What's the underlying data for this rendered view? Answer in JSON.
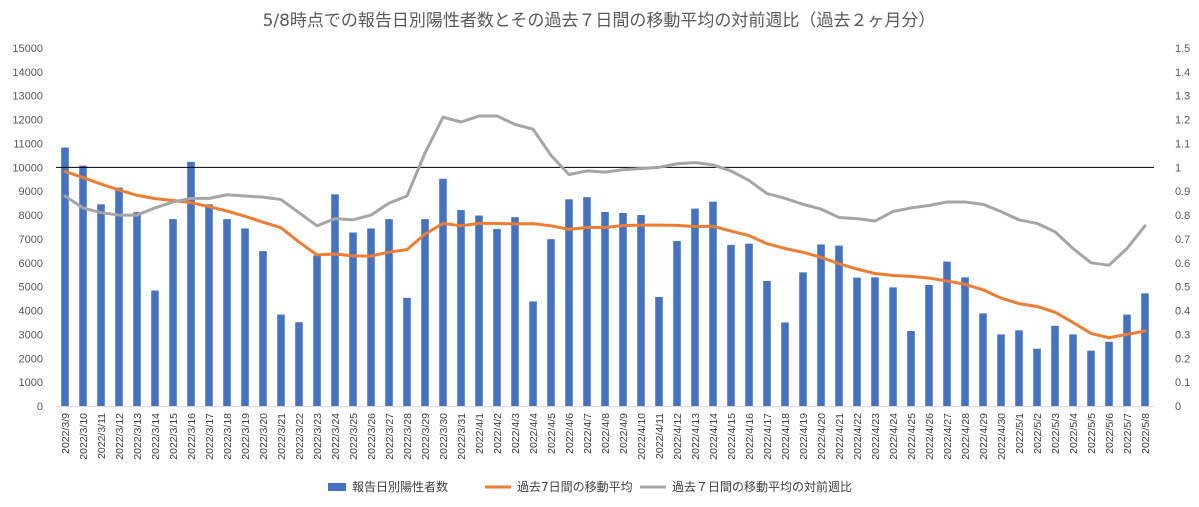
{
  "chart_data": {
    "type": "bar",
    "title": "5/8時点での報告日別陽性者数とその過去７日間の移動平均の対前週比（過去２ヶ月分）",
    "categories": [
      "2022/3/9",
      "2022/3/10",
      "2022/3/11",
      "2022/3/12",
      "2022/3/13",
      "2022/3/14",
      "2022/3/15",
      "2022/3/16",
      "2022/3/17",
      "2022/3/18",
      "2022/3/19",
      "2022/3/20",
      "2022/3/21",
      "2022/3/22",
      "2022/3/23",
      "2022/3/24",
      "2022/3/25",
      "2022/3/26",
      "2022/3/27",
      "2022/3/28",
      "2022/3/29",
      "2022/3/30",
      "2022/3/31",
      "2022/4/1",
      "2022/4/2",
      "2022/4/3",
      "2022/4/4",
      "2022/4/5",
      "2022/4/6",
      "2022/4/7",
      "2022/4/8",
      "2022/4/9",
      "2022/4/10",
      "2022/4/11",
      "2022/4/12",
      "2022/4/13",
      "2022/4/14",
      "2022/4/15",
      "2022/4/16",
      "2022/4/17",
      "2022/4/18",
      "2022/4/19",
      "2022/4/20",
      "2022/4/21",
      "2022/4/22",
      "2022/4/23",
      "2022/4/24",
      "2022/4/25",
      "2022/4/26",
      "2022/4/27",
      "2022/4/28",
      "2022/4/29",
      "2022/4/30",
      "2022/5/1",
      "2022/5/2",
      "2022/5/3",
      "2022/5/4",
      "2022/5/5",
      "2022/5/6",
      "2022/5/7",
      "2022/5/8"
    ],
    "series": [
      {
        "name": "報告日別陽性者数",
        "type": "bar",
        "axis": "left",
        "color": "#4472C4",
        "values": [
          10830,
          10070,
          8450,
          9150,
          8120,
          4840,
          7830,
          10230,
          8450,
          7830,
          7440,
          6490,
          3830,
          3510,
          6310,
          8870,
          7270,
          7440,
          7830,
          4530,
          7830,
          9520,
          8210,
          7980,
          7420,
          7910,
          4380,
          6990,
          8660,
          8750,
          8130,
          8090,
          8000,
          4570,
          6910,
          8270,
          8560,
          6750,
          6800,
          5240,
          3500,
          5600,
          6770,
          6720,
          5380,
          5390,
          4970,
          3140,
          5070,
          6050,
          5390,
          3880,
          3000,
          3170,
          2400,
          3360,
          3000,
          2320,
          2690,
          3830,
          4720
        ]
      },
      {
        "name": "過去7日間の移動平均",
        "type": "line",
        "axis": "left",
        "color": "#ED7D31",
        "values": [
          9830,
          9570,
          9300,
          9050,
          8830,
          8690,
          8610,
          8520,
          8350,
          8170,
          7950,
          7700,
          7470,
          6870,
          6330,
          6370,
          6290,
          6280,
          6450,
          6550,
          7200,
          7650,
          7550,
          7650,
          7650,
          7630,
          7640,
          7550,
          7400,
          7480,
          7480,
          7560,
          7580,
          7580,
          7570,
          7520,
          7530,
          7330,
          7140,
          6800,
          6600,
          6440,
          6230,
          5960,
          5740,
          5550,
          5470,
          5430,
          5360,
          5240,
          5100,
          4870,
          4520,
          4290,
          4170,
          3930,
          3500,
          3040,
          2860,
          3000,
          3140
        ]
      },
      {
        "name": "過去７日間の移動平均の対前週比",
        "type": "line",
        "axis": "right",
        "color": "#A5A5A5",
        "values": [
          0.88,
          0.83,
          0.81,
          0.8,
          0.8,
          0.83,
          0.855,
          0.87,
          0.87,
          0.885,
          0.88,
          0.875,
          0.865,
          0.81,
          0.755,
          0.785,
          0.78,
          0.8,
          0.85,
          0.88,
          1.06,
          1.21,
          1.19,
          1.215,
          1.215,
          1.18,
          1.16,
          1.05,
          0.97,
          0.985,
          0.98,
          0.99,
          0.995,
          1.0,
          1.015,
          1.02,
          1.01,
          0.985,
          0.945,
          0.89,
          0.87,
          0.845,
          0.825,
          0.79,
          0.785,
          0.775,
          0.815,
          0.83,
          0.84,
          0.855,
          0.855,
          0.845,
          0.815,
          0.78,
          0.765,
          0.73,
          0.66,
          0.6,
          0.59,
          0.66,
          0.755
        ]
      }
    ],
    "y_left": {
      "min": 0,
      "max": 15000,
      "step": 1000
    },
    "y_right": {
      "min": 0,
      "max": 1.5,
      "step": 0.1,
      "reference_line": 1.0
    },
    "grid": false,
    "legend_position": "bottom"
  }
}
